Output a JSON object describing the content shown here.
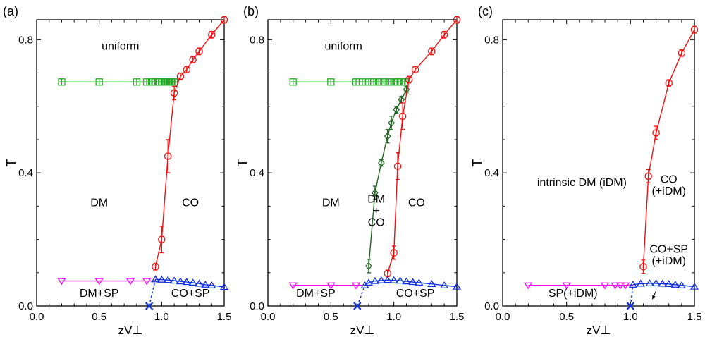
{
  "figure": {
    "description_free": true
  },
  "chart_data": [
    {
      "type": "scatter",
      "panel_label": "(a)",
      "xlabel": "zV⊥",
      "ylabel": "T",
      "xlim": [
        0.0,
        1.5
      ],
      "ylim": [
        0.0,
        0.86
      ],
      "xticks": [
        0.0,
        0.5,
        1.0,
        1.5
      ],
      "xtick_labels": [
        "0.0",
        "0.5",
        "1.0",
        "1.5"
      ],
      "yticks": [
        0.0,
        0.4,
        0.8
      ],
      "ytick_labels": [
        "0.0",
        "0.4",
        "0.8"
      ],
      "grid": false,
      "series": [
        {
          "name": "uniform-boundary",
          "marker": "square-plus",
          "color": "#22aa22",
          "x": [
            0.2,
            0.5,
            0.8,
            0.88,
            0.92,
            0.95,
            0.98,
            1.0,
            1.02,
            1.04,
            1.06,
            1.08,
            1.1
          ],
          "y": [
            0.673,
            0.673,
            0.673,
            0.673,
            0.673,
            0.673,
            0.673,
            0.673,
            0.673,
            0.673,
            0.673,
            0.673,
            0.673
          ]
        },
        {
          "name": "CO-boundary",
          "marker": "circle",
          "color": "#ee1111",
          "x": [
            0.95,
            1.0,
            1.05,
            1.1,
            1.15,
            1.2,
            1.25,
            1.3,
            1.4,
            1.5
          ],
          "y": [
            0.118,
            0.2,
            0.45,
            0.64,
            0.69,
            0.71,
            0.74,
            0.765,
            0.815,
            0.86
          ],
          "err": [
            0.01,
            0.04,
            0.05,
            0.02,
            0.01,
            0.01,
            0.01,
            0.01,
            0.01,
            0.01
          ]
        },
        {
          "name": "SP-boundary",
          "marker": "triangle-down",
          "color": "#ff00ff",
          "x": [
            0.2,
            0.5,
            0.75,
            0.88
          ],
          "y": [
            0.075,
            0.075,
            0.075,
            0.075
          ],
          "line_to": [
            0.95,
            0.075
          ]
        },
        {
          "name": "CO+SP-boundary",
          "marker": "triangle-up",
          "color": "#1133dd",
          "x": [
            0.95,
            1.0,
            1.05,
            1.1,
            1.15,
            1.2,
            1.25,
            1.3,
            1.35,
            1.4,
            1.5
          ],
          "y": [
            0.08,
            0.079,
            0.078,
            0.076,
            0.074,
            0.072,
            0.07,
            0.067,
            0.064,
            0.062,
            0.057
          ]
        }
      ],
      "dashed": {
        "color": "#1133dd",
        "x": [
          0.9,
          0.95
        ],
        "y": [
          0.0,
          0.08
        ]
      },
      "cross": {
        "x": 0.9,
        "y": 0.0,
        "color": "#1133dd"
      },
      "annotations": [
        {
          "text": "uniform",
          "x": 0.67,
          "y": 0.77,
          "anchor": "middle"
        },
        {
          "text": "DM",
          "x": 0.5,
          "y": 0.3,
          "anchor": "middle"
        },
        {
          "text": "CO",
          "x": 1.23,
          "y": 0.3,
          "anchor": "middle"
        },
        {
          "text": "DM+SP",
          "x": 0.5,
          "y": 0.028,
          "anchor": "middle"
        },
        {
          "text": "CO+SP",
          "x": 1.23,
          "y": 0.028,
          "anchor": "middle"
        }
      ]
    },
    {
      "type": "scatter",
      "panel_label": "(b)",
      "xlabel": "zV⊥",
      "ylabel": "T",
      "xlim": [
        0.0,
        1.5
      ],
      "ylim": [
        0.0,
        0.86
      ],
      "xticks": [
        0.0,
        0.5,
        1.0,
        1.5
      ],
      "xtick_labels": [
        "0.0",
        "0.5",
        "1.0",
        "1.5"
      ],
      "yticks": [
        0.0,
        0.4,
        0.8
      ],
      "ytick_labels": [
        "0.0",
        "0.4",
        "0.8"
      ],
      "grid": false,
      "series": [
        {
          "name": "uniform-boundary",
          "marker": "square-plus",
          "color": "#22aa22",
          "x": [
            0.2,
            0.5,
            0.7,
            0.75,
            0.8,
            0.84,
            0.88,
            0.92,
            0.96,
            1.0,
            1.03,
            1.06,
            1.09
          ],
          "y": [
            0.673,
            0.673,
            0.673,
            0.673,
            0.673,
            0.673,
            0.673,
            0.673,
            0.673,
            0.673,
            0.673,
            0.673,
            0.673
          ]
        },
        {
          "name": "DM+CO-boundary",
          "marker": "diamond",
          "color": "#226622",
          "x": [
            0.8,
            0.85,
            0.9,
            0.95,
            0.98,
            1.02,
            1.06,
            1.1
          ],
          "y": [
            0.12,
            0.34,
            0.43,
            0.51,
            0.55,
            0.59,
            0.62,
            0.65
          ],
          "err": [
            0.02,
            0.02,
            0.01,
            0.02,
            0.02,
            0.01,
            0.01,
            0.01
          ]
        },
        {
          "name": "CO-boundary",
          "marker": "circle",
          "color": "#ee1111",
          "x": [
            0.95,
            1.0,
            1.03,
            1.07,
            1.12,
            1.17,
            1.3,
            1.4,
            1.5
          ],
          "y": [
            0.098,
            0.16,
            0.42,
            0.57,
            0.68,
            0.71,
            0.765,
            0.815,
            0.86
          ],
          "err": [
            0.01,
            0.02,
            0.04,
            0.04,
            0.01,
            0.01,
            0.01,
            0.01,
            0.01
          ]
        },
        {
          "name": "SP-boundary",
          "marker": "triangle-down",
          "color": "#ff00ff",
          "x": [
            0.2,
            0.5,
            0.7
          ],
          "y": [
            0.062,
            0.062,
            0.062
          ],
          "line_to": [
            0.76,
            0.062
          ]
        },
        {
          "name": "CO+SP-boundary",
          "marker": "triangle-up",
          "color": "#1133dd",
          "x": [
            0.77,
            0.8,
            0.85,
            0.9,
            0.95,
            1.0,
            1.05,
            1.1,
            1.15,
            1.2,
            1.3,
            1.4,
            1.5
          ],
          "y": [
            0.062,
            0.07,
            0.075,
            0.077,
            0.078,
            0.077,
            0.076,
            0.074,
            0.072,
            0.07,
            0.066,
            0.062,
            0.058
          ]
        }
      ],
      "dashed": {
        "color": "#1133dd",
        "x": [
          0.71,
          0.77
        ],
        "y": [
          0.0,
          0.062
        ]
      },
      "cross": {
        "x": 0.71,
        "y": 0.0,
        "color": "#1133dd"
      },
      "annotations": [
        {
          "text": "uniform",
          "x": 0.6,
          "y": 0.77,
          "anchor": "middle"
        },
        {
          "text": "DM",
          "x": 0.5,
          "y": 0.3,
          "anchor": "middle"
        },
        {
          "text": "DM",
          "x": 0.86,
          "y": 0.31,
          "anchor": "middle"
        },
        {
          "text": "+",
          "x": 0.86,
          "y": 0.275,
          "anchor": "middle"
        },
        {
          "text": "CO",
          "x": 0.86,
          "y": 0.24,
          "anchor": "middle"
        },
        {
          "text": "CO",
          "x": 1.18,
          "y": 0.3,
          "anchor": "middle"
        },
        {
          "text": "DM+SP",
          "x": 0.38,
          "y": 0.028,
          "anchor": "middle"
        },
        {
          "text": "CO+SP",
          "x": 1.17,
          "y": 0.028,
          "anchor": "middle"
        }
      ]
    },
    {
      "type": "scatter",
      "panel_label": "(c)",
      "xlabel": "zV⊥",
      "ylabel": "T",
      "xlim": [
        0.0,
        1.5
      ],
      "ylim": [
        0.0,
        0.86
      ],
      "xticks": [
        0.0,
        0.5,
        1.0,
        1.5
      ],
      "xtick_labels": [
        "0.0",
        "0.5",
        "1.0",
        "1.5"
      ],
      "yticks": [
        0.0,
        0.4,
        0.8
      ],
      "ytick_labels": [
        "0.0",
        "0.4",
        "0.8"
      ],
      "grid": false,
      "series": [
        {
          "name": "CO-boundary",
          "marker": "circle",
          "color": "#ee1111",
          "x": [
            1.1,
            1.14,
            1.2,
            1.3,
            1.4,
            1.5
          ],
          "y": [
            0.118,
            0.39,
            0.52,
            0.67,
            0.76,
            0.83
          ],
          "err": [
            0.02,
            0.02,
            0.02,
            0.01,
            0.01,
            0.01
          ]
        },
        {
          "name": "SP-boundary",
          "marker": "triangle-down",
          "color": "#ff00ff",
          "x": [
            0.2,
            0.5,
            0.8,
            0.88,
            0.92,
            0.96
          ],
          "y": [
            0.062,
            0.062,
            0.062,
            0.062,
            0.062,
            0.062
          ],
          "line_to": [
            1.02,
            0.062
          ]
        },
        {
          "name": "CO+SP-boundary",
          "marker": "triangle-up",
          "color": "#1133dd",
          "x": [
            1.02,
            1.08,
            1.15,
            1.2,
            1.25,
            1.3,
            1.35,
            1.4,
            1.5
          ],
          "y": [
            0.064,
            0.067,
            0.068,
            0.068,
            0.067,
            0.066,
            0.064,
            0.062,
            0.058
          ]
        }
      ],
      "dashed": {
        "color": "#1133dd",
        "x": [
          1.0,
          1.02
        ],
        "y": [
          0.0,
          0.064
        ]
      },
      "cross": {
        "x": 1.0,
        "y": 0.0,
        "color": "#1133dd"
      },
      "arrow": {
        "from": [
          1.2,
          0.045
        ],
        "to": [
          1.17,
          0.02
        ]
      },
      "annotations": [
        {
          "text": "intrinsic DM (iDM)",
          "x": 0.62,
          "y": 0.36,
          "anchor": "middle"
        },
        {
          "text": "CO",
          "x": 1.3,
          "y": 0.37,
          "anchor": "middle"
        },
        {
          "text": "(+iDM)",
          "x": 1.3,
          "y": 0.335,
          "anchor": "middle"
        },
        {
          "text": "CO+SP",
          "x": 1.3,
          "y": 0.16,
          "anchor": "middle"
        },
        {
          "text": "(+iDM)",
          "x": 1.3,
          "y": 0.125,
          "anchor": "middle"
        },
        {
          "text": "SP(+iDM)",
          "x": 0.55,
          "y": 0.028,
          "anchor": "middle"
        }
      ]
    }
  ]
}
